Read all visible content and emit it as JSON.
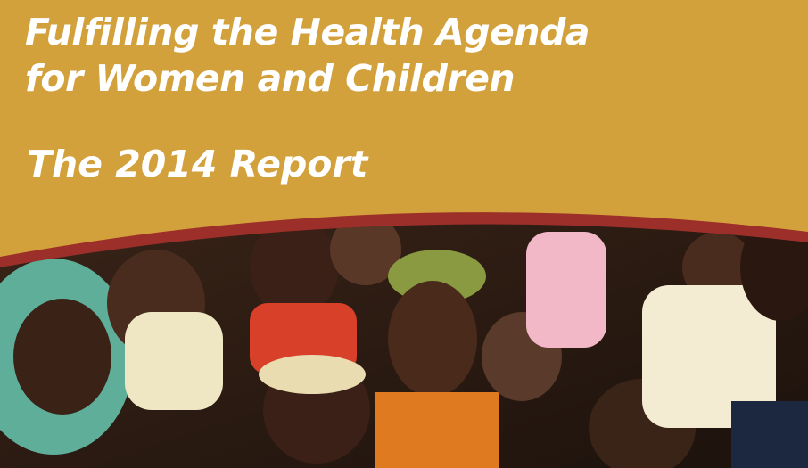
{
  "cover": {
    "title_line1": "Fulfilling the Health Agenda",
    "title_line2": "for Women and Children",
    "subtitle": "The 2014 Report",
    "colors": {
      "background": "#d3a13c",
      "band": "#9c2f2a",
      "text": "#ffffff"
    },
    "photo": "photo of mothers holding babies"
  }
}
